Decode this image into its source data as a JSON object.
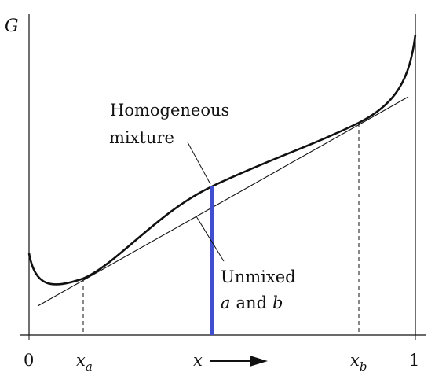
{
  "diagram": {
    "labels": {
      "y_axis": "G",
      "homogeneous_line1": "Homogeneous",
      "homogeneous_line2": "mixture",
      "unmixed_line1": "Unmixed",
      "unmixed_line2_a": "a",
      "unmixed_line2_and": "and",
      "unmixed_line2_b": "b"
    },
    "tick_labels": {
      "zero": "0",
      "one": "1",
      "xa_base": "x",
      "xa_sub": "a",
      "x": "x",
      "xb_base": "x",
      "xb_sub": "b"
    },
    "colors": {
      "curve": "#111111",
      "tangent": "#111111",
      "highlight": "#3f4fd0",
      "axis": "#111111"
    }
  }
}
